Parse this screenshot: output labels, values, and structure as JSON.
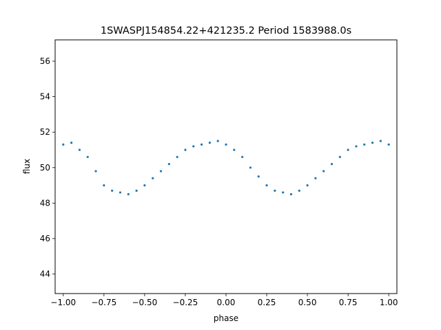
{
  "chart_data": {
    "type": "scatter",
    "title": "1SWASPJ154854.22+421235.2 Period 1583988.0s",
    "xlabel": "phase",
    "ylabel": "flux",
    "xlim": [
      -1.05,
      1.05
    ],
    "ylim": [
      42.9,
      57.2
    ],
    "xticks": [
      -1.0,
      -0.75,
      -0.5,
      -0.25,
      0.0,
      0.25,
      0.5,
      0.75,
      1.0
    ],
    "xtick_labels": [
      "−1.00",
      "−0.75",
      "−0.50",
      "−0.25",
      "0.00",
      "0.25",
      "0.50",
      "0.75",
      "1.00"
    ],
    "yticks": [
      44,
      46,
      48,
      50,
      52,
      54,
      56
    ],
    "ytick_labels": [
      "44",
      "46",
      "48",
      "50",
      "52",
      "54",
      "56"
    ],
    "grid": false,
    "marker_color": "#1f77b4",
    "series": [
      {
        "x": [
          -1.0,
          -0.95,
          -0.9,
          -0.85,
          -0.8,
          -0.75,
          -0.7,
          -0.65,
          -0.6,
          -0.55,
          -0.5,
          -0.45,
          -0.4,
          -0.35,
          -0.3,
          -0.25,
          -0.2,
          -0.15,
          -0.1,
          -0.05,
          0.0,
          0.05,
          0.1,
          0.15,
          0.2,
          0.25,
          0.3,
          0.35,
          0.4,
          0.45,
          0.5,
          0.55,
          0.6,
          0.65,
          0.7,
          0.75,
          0.8,
          0.85,
          0.9,
          0.95,
          1.0
        ],
        "y": [
          51.3,
          51.4,
          51.0,
          50.6,
          49.8,
          49.0,
          48.7,
          48.6,
          48.5,
          48.7,
          49.0,
          49.4,
          49.8,
          50.2,
          50.6,
          51.0,
          51.2,
          51.3,
          51.4,
          51.5,
          51.3,
          51.0,
          50.6,
          50.0,
          49.5,
          49.0,
          48.7,
          48.6,
          48.5,
          48.7,
          49.0,
          49.4,
          49.8,
          50.2,
          50.6,
          51.0,
          51.2,
          51.3,
          51.4,
          51.5,
          51.3
        ]
      }
    ]
  }
}
